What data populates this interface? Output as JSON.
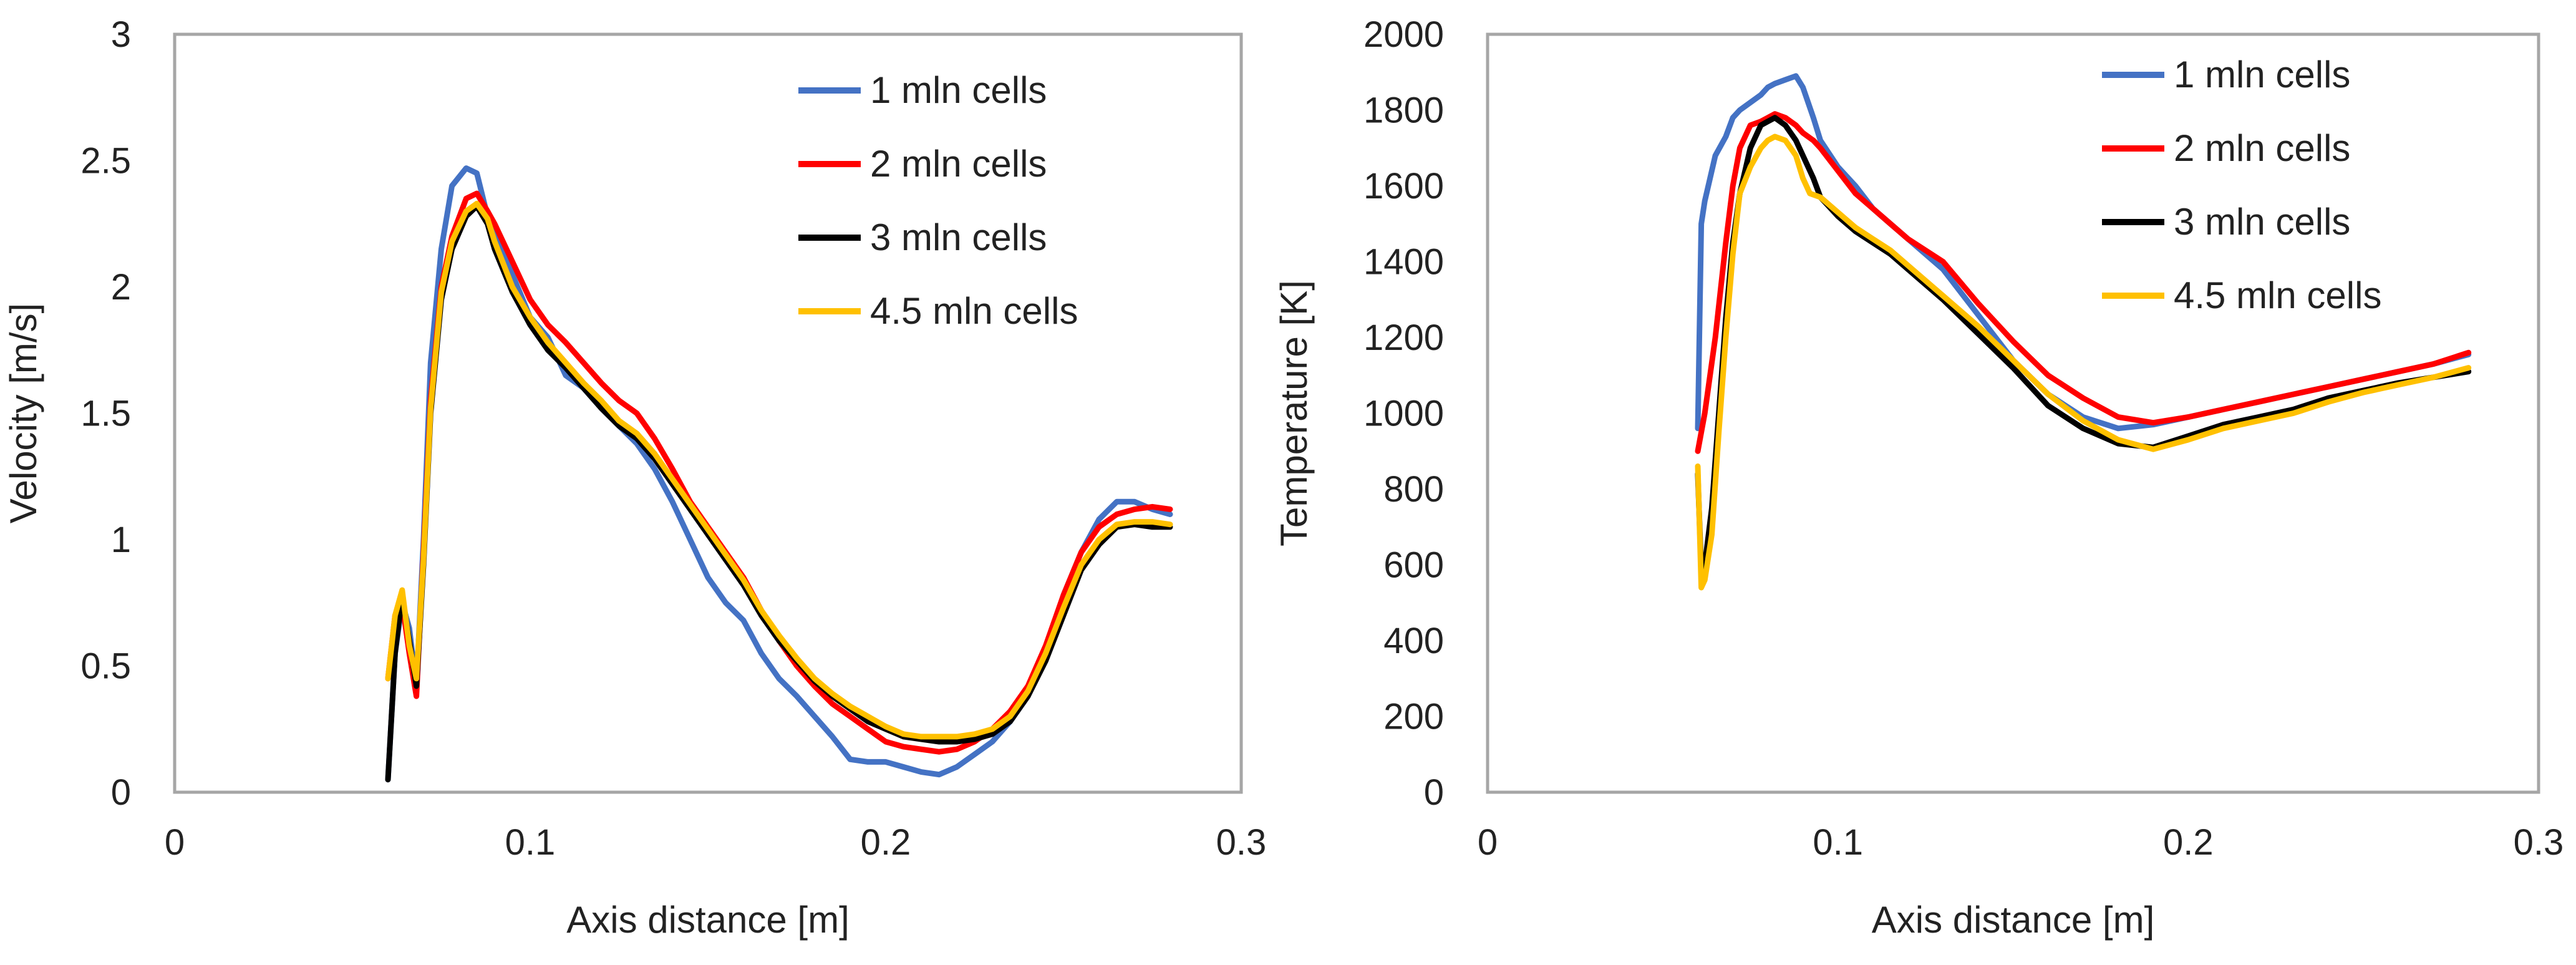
{
  "chart_data": [
    {
      "type": "line",
      "title": "",
      "xlabel": "Axis distance [m]",
      "ylabel": "Velocity [m/s]",
      "xlim": [
        0,
        0.3
      ],
      "ylim": [
        0,
        3
      ],
      "xticks": [
        0,
        0.1,
        0.2,
        0.3
      ],
      "xtick_labels": [
        "0",
        "0.1",
        "0.2",
        "0.3"
      ],
      "yticks": [
        0,
        0.5,
        1,
        1.5,
        2,
        2.5,
        3
      ],
      "ytick_labels": [
        "0",
        "0.5",
        "1",
        "1.5",
        "2",
        "2.5",
        "3"
      ],
      "grid": false,
      "legend_position": "top-right",
      "series": [
        {
          "name": "1 mln cells",
          "color": "#4472C4",
          "x": [
            0.06,
            0.062,
            0.064,
            0.066,
            0.068,
            0.07,
            0.072,
            0.075,
            0.078,
            0.082,
            0.085,
            0.088,
            0.09,
            0.095,
            0.1,
            0.105,
            0.11,
            0.115,
            0.12,
            0.125,
            0.13,
            0.135,
            0.14,
            0.145,
            0.15,
            0.155,
            0.16,
            0.165,
            0.17,
            0.175,
            0.18,
            0.185,
            0.19,
            0.195,
            0.2,
            0.205,
            0.21,
            0.215,
            0.22,
            0.225,
            0.23,
            0.235,
            0.24,
            0.245,
            0.25,
            0.255,
            0.26,
            0.265,
            0.27,
            0.275,
            0.28
          ],
          "y": [
            0.05,
            0.55,
            0.75,
            0.65,
            0.42,
            1.0,
            1.7,
            2.15,
            2.4,
            2.47,
            2.45,
            2.28,
            2.2,
            2.05,
            1.88,
            1.8,
            1.65,
            1.6,
            1.52,
            1.45,
            1.38,
            1.28,
            1.15,
            1.0,
            0.85,
            0.75,
            0.68,
            0.55,
            0.45,
            0.38,
            0.3,
            0.22,
            0.13,
            0.12,
            0.12,
            0.1,
            0.08,
            0.07,
            0.1,
            0.15,
            0.2,
            0.28,
            0.38,
            0.55,
            0.78,
            0.95,
            1.08,
            1.15,
            1.15,
            1.12,
            1.1
          ]
        },
        {
          "name": "2 mln cells",
          "color": "#FF0000",
          "x": [
            0.06,
            0.062,
            0.064,
            0.066,
            0.068,
            0.07,
            0.072,
            0.075,
            0.078,
            0.082,
            0.085,
            0.088,
            0.09,
            0.095,
            0.1,
            0.105,
            0.11,
            0.115,
            0.12,
            0.125,
            0.13,
            0.135,
            0.14,
            0.145,
            0.15,
            0.155,
            0.16,
            0.165,
            0.17,
            0.175,
            0.18,
            0.185,
            0.19,
            0.195,
            0.2,
            0.205,
            0.21,
            0.215,
            0.22,
            0.225,
            0.23,
            0.235,
            0.24,
            0.245,
            0.25,
            0.255,
            0.26,
            0.265,
            0.27,
            0.275,
            0.28
          ],
          "y": [
            0.45,
            0.7,
            0.75,
            0.55,
            0.38,
            0.95,
            1.55,
            2.0,
            2.2,
            2.35,
            2.37,
            2.3,
            2.25,
            2.1,
            1.95,
            1.85,
            1.78,
            1.7,
            1.62,
            1.55,
            1.5,
            1.4,
            1.28,
            1.15,
            1.05,
            0.95,
            0.85,
            0.72,
            0.6,
            0.5,
            0.42,
            0.35,
            0.3,
            0.25,
            0.2,
            0.18,
            0.17,
            0.16,
            0.17,
            0.2,
            0.25,
            0.32,
            0.42,
            0.58,
            0.78,
            0.95,
            1.05,
            1.1,
            1.12,
            1.13,
            1.12
          ]
        },
        {
          "name": "3 mln cells",
          "color": "#000000",
          "x": [
            0.06,
            0.062,
            0.064,
            0.066,
            0.068,
            0.07,
            0.072,
            0.075,
            0.078,
            0.082,
            0.085,
            0.088,
            0.09,
            0.095,
            0.1,
            0.105,
            0.11,
            0.115,
            0.12,
            0.125,
            0.13,
            0.135,
            0.14,
            0.145,
            0.15,
            0.155,
            0.16,
            0.165,
            0.17,
            0.175,
            0.18,
            0.185,
            0.19,
            0.195,
            0.2,
            0.205,
            0.21,
            0.215,
            0.22,
            0.225,
            0.23,
            0.235,
            0.24,
            0.245,
            0.25,
            0.255,
            0.26,
            0.265,
            0.27,
            0.275,
            0.28
          ],
          "y": [
            0.05,
            0.55,
            0.78,
            0.6,
            0.42,
            0.9,
            1.5,
            1.95,
            2.15,
            2.28,
            2.32,
            2.25,
            2.15,
            1.98,
            1.85,
            1.75,
            1.68,
            1.6,
            1.52,
            1.45,
            1.4,
            1.32,
            1.22,
            1.12,
            1.02,
            0.92,
            0.82,
            0.7,
            0.6,
            0.52,
            0.44,
            0.38,
            0.33,
            0.28,
            0.25,
            0.22,
            0.21,
            0.2,
            0.2,
            0.21,
            0.23,
            0.28,
            0.38,
            0.52,
            0.7,
            0.88,
            0.98,
            1.05,
            1.06,
            1.05,
            1.05
          ]
        },
        {
          "name": "4.5 mln cells",
          "color": "#FFC000",
          "x": [
            0.06,
            0.062,
            0.064,
            0.066,
            0.068,
            0.07,
            0.072,
            0.075,
            0.078,
            0.082,
            0.085,
            0.088,
            0.09,
            0.095,
            0.1,
            0.105,
            0.11,
            0.115,
            0.12,
            0.125,
            0.13,
            0.135,
            0.14,
            0.145,
            0.15,
            0.155,
            0.16,
            0.165,
            0.17,
            0.175,
            0.18,
            0.185,
            0.19,
            0.195,
            0.2,
            0.205,
            0.21,
            0.215,
            0.22,
            0.225,
            0.23,
            0.235,
            0.24,
            0.245,
            0.25,
            0.255,
            0.26,
            0.265,
            0.27,
            0.275,
            0.28
          ],
          "y": [
            0.45,
            0.7,
            0.8,
            0.58,
            0.45,
            0.92,
            1.52,
            1.98,
            2.18,
            2.3,
            2.33,
            2.27,
            2.18,
            2.0,
            1.88,
            1.78,
            1.7,
            1.62,
            1.55,
            1.47,
            1.42,
            1.34,
            1.24,
            1.14,
            1.04,
            0.94,
            0.84,
            0.72,
            0.62,
            0.53,
            0.45,
            0.39,
            0.34,
            0.3,
            0.26,
            0.23,
            0.22,
            0.22,
            0.22,
            0.23,
            0.25,
            0.3,
            0.4,
            0.55,
            0.73,
            0.9,
            1.0,
            1.06,
            1.07,
            1.07,
            1.06
          ]
        }
      ]
    },
    {
      "type": "line",
      "title": "",
      "xlabel": "Axis distance [m]",
      "ylabel": "Temperature [K]",
      "xlim": [
        0,
        0.3
      ],
      "ylim": [
        0,
        2000
      ],
      "xticks": [
        0,
        0.1,
        0.2,
        0.3
      ],
      "xtick_labels": [
        "0",
        "0.1",
        "0.2",
        "0.3"
      ],
      "yticks": [
        0,
        200,
        400,
        600,
        800,
        1000,
        1200,
        1400,
        1600,
        1800,
        2000
      ],
      "ytick_labels": [
        "0",
        "200",
        "400",
        "600",
        "800",
        "1000",
        "1200",
        "1400",
        "1600",
        "1800",
        "2000"
      ],
      "grid": false,
      "legend_position": "top-right",
      "series": [
        {
          "name": "1 mln cells",
          "color": "#4472C4",
          "x": [
            0.06,
            0.061,
            0.062,
            0.065,
            0.068,
            0.07,
            0.072,
            0.075,
            0.078,
            0.08,
            0.082,
            0.085,
            0.088,
            0.09,
            0.093,
            0.095,
            0.1,
            0.105,
            0.11,
            0.115,
            0.12,
            0.13,
            0.14,
            0.15,
            0.16,
            0.17,
            0.18,
            0.19,
            0.2,
            0.21,
            0.22,
            0.23,
            0.24,
            0.25,
            0.26,
            0.27,
            0.28
          ],
          "y": [
            960,
            1500,
            1560,
            1680,
            1730,
            1780,
            1800,
            1820,
            1840,
            1860,
            1870,
            1880,
            1890,
            1860,
            1780,
            1720,
            1650,
            1600,
            1540,
            1500,
            1460,
            1380,
            1260,
            1140,
            1050,
            990,
            960,
            970,
            990,
            1010,
            1030,
            1050,
            1070,
            1090,
            1110,
            1130,
            1155
          ]
        },
        {
          "name": "2 mln cells",
          "color": "#FF0000",
          "x": [
            0.06,
            0.062,
            0.065,
            0.068,
            0.07,
            0.072,
            0.075,
            0.078,
            0.08,
            0.082,
            0.085,
            0.088,
            0.09,
            0.093,
            0.095,
            0.1,
            0.105,
            0.11,
            0.115,
            0.12,
            0.13,
            0.14,
            0.15,
            0.16,
            0.17,
            0.18,
            0.19,
            0.2,
            0.21,
            0.22,
            0.23,
            0.24,
            0.25,
            0.26,
            0.27,
            0.28
          ],
          "y": [
            900,
            1000,
            1200,
            1450,
            1600,
            1700,
            1760,
            1770,
            1780,
            1790,
            1780,
            1760,
            1740,
            1720,
            1700,
            1640,
            1580,
            1540,
            1500,
            1460,
            1400,
            1290,
            1190,
            1100,
            1040,
            990,
            975,
            990,
            1010,
            1030,
            1050,
            1070,
            1090,
            1110,
            1130,
            1160
          ]
        },
        {
          "name": "3 mln cells",
          "color": "#000000",
          "x": [
            0.06,
            0.061,
            0.062,
            0.064,
            0.066,
            0.068,
            0.07,
            0.072,
            0.075,
            0.078,
            0.08,
            0.082,
            0.085,
            0.088,
            0.09,
            0.093,
            0.095,
            0.1,
            0.105,
            0.11,
            0.115,
            0.12,
            0.13,
            0.14,
            0.15,
            0.16,
            0.17,
            0.18,
            0.19,
            0.2,
            0.21,
            0.22,
            0.23,
            0.24,
            0.25,
            0.26,
            0.27,
            0.28
          ],
          "y": [
            840,
            580,
            600,
            750,
            1000,
            1250,
            1450,
            1580,
            1700,
            1760,
            1770,
            1780,
            1760,
            1720,
            1680,
            1620,
            1570,
            1520,
            1480,
            1450,
            1420,
            1380,
            1300,
            1210,
            1120,
            1020,
            960,
            920,
            910,
            940,
            970,
            990,
            1010,
            1040,
            1060,
            1080,
            1095,
            1110
          ]
        },
        {
          "name": "4.5 mln cells",
          "color": "#FFC000",
          "x": [
            0.06,
            0.061,
            0.062,
            0.064,
            0.066,
            0.068,
            0.07,
            0.072,
            0.075,
            0.078,
            0.08,
            0.082,
            0.085,
            0.088,
            0.09,
            0.092,
            0.095,
            0.1,
            0.105,
            0.11,
            0.115,
            0.12,
            0.13,
            0.14,
            0.15,
            0.16,
            0.17,
            0.18,
            0.19,
            0.2,
            0.21,
            0.22,
            0.23,
            0.24,
            0.25,
            0.26,
            0.27,
            0.28
          ],
          "y": [
            860,
            540,
            560,
            680,
            950,
            1200,
            1420,
            1580,
            1650,
            1700,
            1720,
            1730,
            1720,
            1680,
            1620,
            1580,
            1570,
            1530,
            1490,
            1460,
            1430,
            1390,
            1310,
            1230,
            1140,
            1050,
            980,
            930,
            905,
            930,
            960,
            980,
            1000,
            1030,
            1055,
            1075,
            1095,
            1120
          ]
        }
      ]
    }
  ]
}
